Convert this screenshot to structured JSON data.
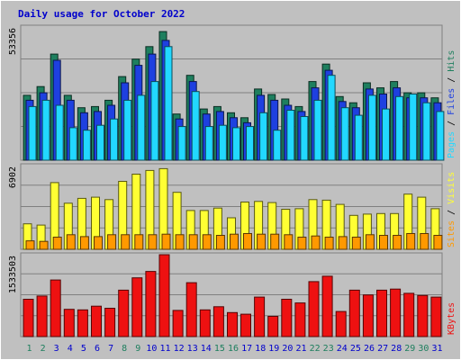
{
  "colors": {
    "background": "#c0c0c0",
    "plot_bg": "#c0c0c0",
    "grid": "#808080",
    "title": "#0000cc",
    "hits": "#1e7f5e",
    "files": "#1e40e0",
    "pages": "#22d8ff",
    "visits": "#ffff33",
    "sites": "#ff9900",
    "kbytes": "#ee1111",
    "day_weekend": "#1e7f5e",
    "day_weekday": "#0000cc"
  },
  "chart_data": {
    "type": "bar",
    "title": "Daily usage for October 2022",
    "categories": [
      "1",
      "2",
      "3",
      "4",
      "5",
      "6",
      "7",
      "8",
      "9",
      "10",
      "11",
      "12",
      "13",
      "14",
      "15",
      "16",
      "17",
      "18",
      "19",
      "20",
      "21",
      "22",
      "23",
      "24",
      "25",
      "26",
      "27",
      "28",
      "29",
      "30",
      "31"
    ],
    "weekend_days": [
      1,
      2,
      8,
      9,
      15,
      16,
      22,
      23,
      29,
      30
    ],
    "panels": [
      {
        "id": "requests",
        "max_label": "53356",
        "ymax": 53356,
        "legend": [
          {
            "label": "Pages",
            "color": "#22d8ff"
          },
          {
            "label": " / ",
            "color": "#000000"
          },
          {
            "label": "Files",
            "color": "#1e40e0"
          },
          {
            "label": " / ",
            "color": "#000000"
          },
          {
            "label": "Hits",
            "color": "#1e7f5e"
          }
        ],
        "series": [
          {
            "name": "Hits",
            "values": [
              26000,
              29500,
              42500,
              26000,
              21000,
              21500,
              24000,
              33500,
              40500,
              45500,
              51500,
              18500,
              34000,
              20500,
              21500,
              19000,
              17000,
              28500,
              26300,
              24500,
              21500,
              31500,
              38500,
              25500,
              23000,
              31000,
              29000,
              31500,
              27000,
              27000,
              25000
            ]
          },
          {
            "name": "Files",
            "values": [
              24000,
              27000,
              40000,
              24000,
              19000,
              19500,
              22000,
              31000,
              38000,
              42500,
              48000,
              16500,
              31500,
              18500,
              19500,
              17000,
              15000,
              26000,
              24000,
              22000,
              19500,
              29000,
              36000,
              23500,
              21000,
              28500,
              26500,
              29000,
              25000,
              25000,
              23000
            ]
          },
          {
            "name": "Pages",
            "values": [
              21500,
              24000,
              22000,
              13000,
              12000,
              14000,
              16500,
              24000,
              26000,
              31500,
              45500,
              13500,
              27500,
              13500,
              14000,
              13000,
              13500,
              19000,
              12000,
              20000,
              17500,
              24000,
              34000,
              21000,
              18000,
              26000,
              20500,
              25500,
              26500,
              23000,
              19500
            ]
          }
        ]
      },
      {
        "id": "visits",
        "max_label": "6902",
        "ymax": 6902,
        "legend": [
          {
            "label": "Sites",
            "color": "#ff9900"
          },
          {
            "label": " / ",
            "color": "#000000"
          },
          {
            "label": "Visits",
            "color": "#ffff33"
          }
        ],
        "series": [
          {
            "name": "Visits",
            "values": [
              2100,
              2000,
              5500,
              3800,
              4200,
              4300,
              4100,
              5600,
              6200,
              6500,
              6650,
              4700,
              3200,
              3200,
              3400,
              2600,
              3900,
              3950,
              3850,
              3300,
              3350,
              4100,
              4050,
              3700,
              2800,
              2900,
              2950,
              2950,
              4550,
              4300,
              3350
            ]
          },
          {
            "name": "Sites",
            "values": [
              700,
              650,
              1000,
              1200,
              1050,
              1050,
              1200,
              1200,
              1200,
              1200,
              1250,
              1200,
              1200,
              1200,
              1150,
              1250,
              1300,
              1250,
              1250,
              1200,
              1000,
              1100,
              1000,
              1050,
              1000,
              1200,
              1150,
              1150,
              1300,
              1300,
              1150
            ]
          }
        ]
      },
      {
        "id": "kbytes",
        "max_label": "1533503",
        "ymax": 1533503,
        "legend": [
          {
            "label": "KBytes",
            "color": "#ee1111"
          }
        ],
        "series": [
          {
            "name": "KBytes",
            "values": [
              700000,
              760000,
              1060000,
              510000,
              500000,
              570000,
              530000,
              870000,
              1100000,
              1220000,
              1533500,
              490000,
              1010000,
              500000,
              560000,
              450000,
              420000,
              740000,
              380000,
              700000,
              630000,
              1030000,
              1130000,
              470000,
              870000,
              780000,
              870000,
              890000,
              810000,
              770000,
              740000
            ]
          }
        ]
      }
    ]
  }
}
